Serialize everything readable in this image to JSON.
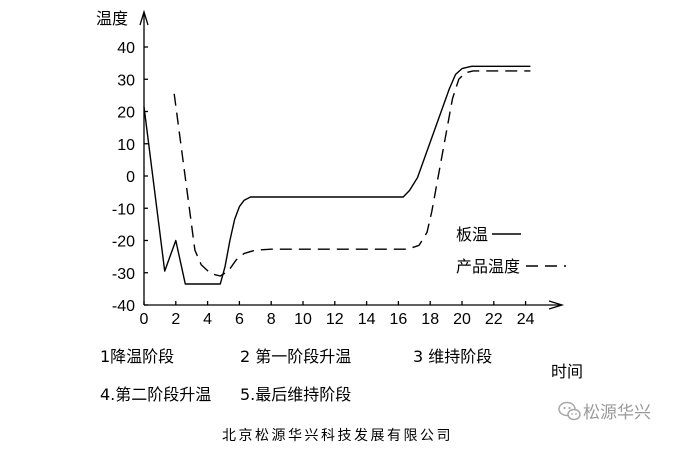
{
  "chart_data": {
    "type": "line",
    "title": "",
    "xlabel": "时间",
    "ylabel": "温度",
    "xlim": [
      0,
      24
    ],
    "ylim": [
      -40,
      40
    ],
    "xticks": [
      0,
      2,
      4,
      6,
      8,
      10,
      12,
      14,
      16,
      18,
      20,
      22,
      24
    ],
    "yticks": [
      40,
      30,
      20,
      10,
      0,
      -10,
      -20,
      -30,
      -40
    ],
    "grid": false,
    "legend_position": "right",
    "series": [
      {
        "name": "板温",
        "line_style": "solid",
        "color": "#000000",
        "points": [
          [
            0,
            21.5
          ],
          [
            1.3,
            -29.5
          ],
          [
            2.0,
            -20
          ],
          [
            2.6,
            -33.5
          ],
          [
            4.8,
            -33.5
          ],
          [
            5.1,
            -28
          ],
          [
            5.4,
            -20
          ],
          [
            5.7,
            -13.5
          ],
          [
            6.0,
            -9.5
          ],
          [
            6.3,
            -7.5
          ],
          [
            6.7,
            -6.5
          ],
          [
            16.3,
            -6.5
          ],
          [
            16.7,
            -4.5
          ],
          [
            17.2,
            -0.5
          ],
          [
            19.2,
            27
          ],
          [
            19.6,
            31.5
          ],
          [
            20.0,
            33.3
          ],
          [
            20.6,
            34
          ],
          [
            24.3,
            34
          ]
        ]
      },
      {
        "name": "产品温度",
        "line_style": "dashed",
        "color": "#000000",
        "points": [
          [
            1.9,
            25.5
          ],
          [
            3.2,
            -23
          ],
          [
            3.6,
            -27.5
          ],
          [
            4.2,
            -30.3
          ],
          [
            4.8,
            -31
          ],
          [
            5.3,
            -29.5
          ],
          [
            5.8,
            -26
          ],
          [
            6.3,
            -24
          ],
          [
            7.0,
            -23
          ],
          [
            8.0,
            -22.7
          ],
          [
            16.6,
            -22.7
          ],
          [
            17.3,
            -21.5
          ],
          [
            17.8,
            -17.5
          ],
          [
            18.1,
            -11
          ],
          [
            19.4,
            24
          ],
          [
            19.8,
            30
          ],
          [
            20.2,
            32
          ],
          [
            20.7,
            32.6
          ],
          [
            24.3,
            32.6
          ]
        ]
      }
    ],
    "stage_labels": [
      "1降温阶段",
      "2 第一阶段升温",
      "3 维持阶段",
      "4.第二阶段升温",
      "5.最后维持阶段"
    ]
  },
  "footer": {
    "company": "北京松源华兴科技发展有限公司"
  },
  "watermark": {
    "text": "松源华兴",
    "icon": "wechat-icon"
  }
}
